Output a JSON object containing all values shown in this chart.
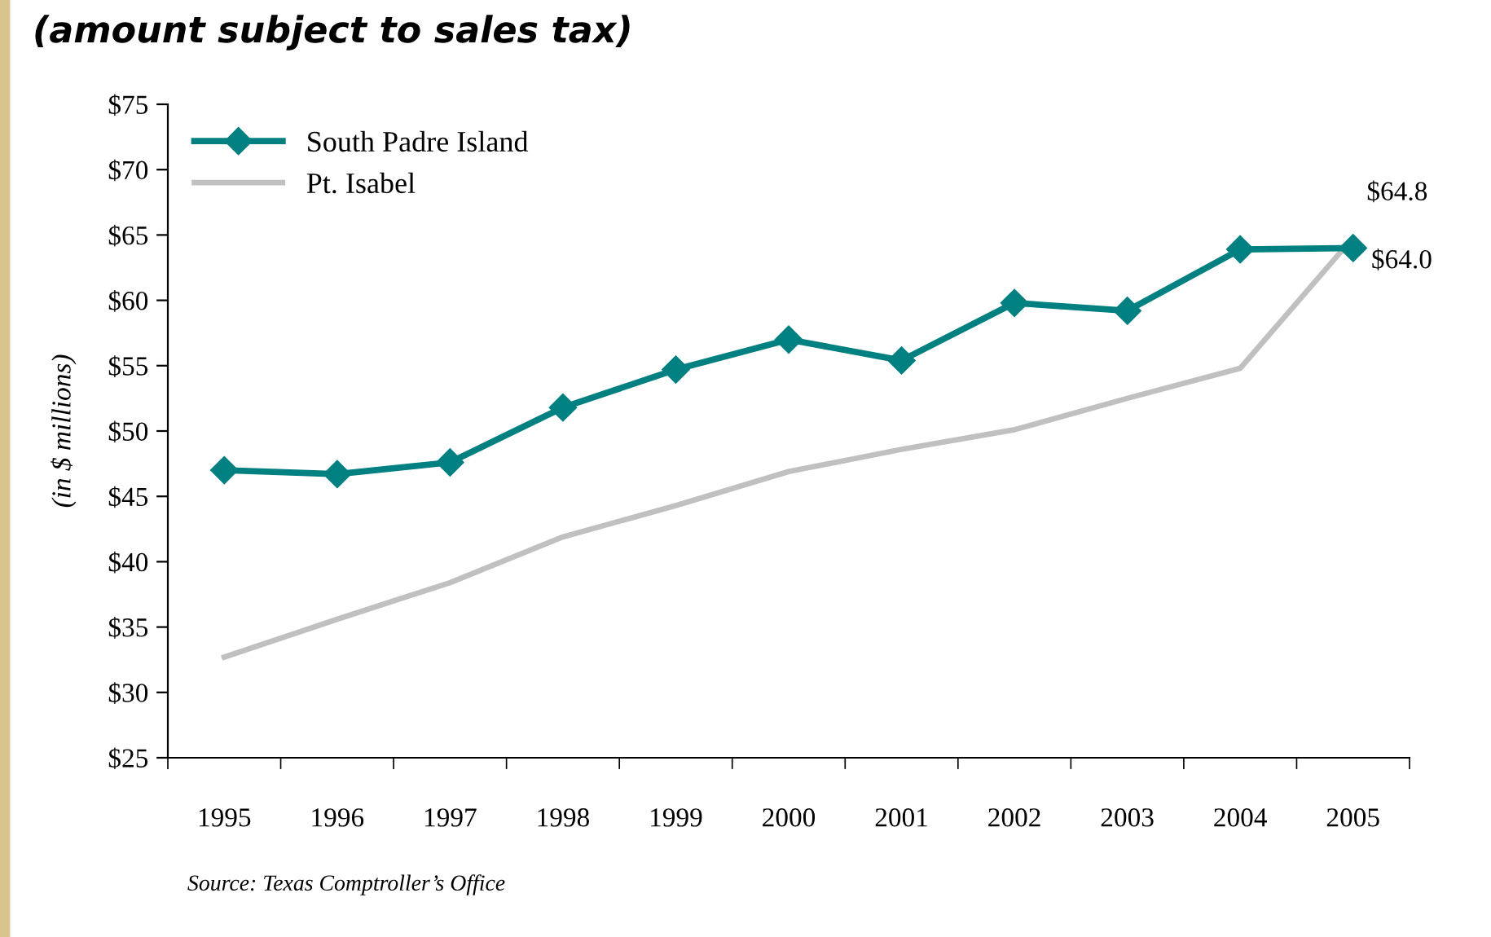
{
  "chart_data": {
    "type": "line",
    "subtitle": "(amount subject to sales tax)",
    "ylabel": "(in $ millions)",
    "categories": [
      "1995",
      "1996",
      "1997",
      "1998",
      "1999",
      "2000",
      "2001",
      "2002",
      "2003",
      "2004",
      "2005"
    ],
    "series": [
      {
        "name": "South Padre Island",
        "color": "#008080",
        "marker": "diamond",
        "values": [
          47.0,
          46.7,
          47.6,
          51.8,
          54.7,
          57.0,
          55.4,
          59.8,
          59.2,
          63.9,
          64.0
        ],
        "value_labels": [
          null,
          null,
          null,
          null,
          null,
          null,
          null,
          null,
          null,
          null,
          "$64.0"
        ]
      },
      {
        "name": "Pt. Isabel",
        "color": "#c0c0c0",
        "marker": "none",
        "values": [
          32.7,
          35.6,
          38.4,
          41.9,
          44.3,
          46.9,
          48.6,
          50.1,
          52.5,
          54.8,
          64.8
        ],
        "value_labels": [
          null,
          null,
          null,
          null,
          null,
          null,
          null,
          null,
          null,
          null,
          "$64.8"
        ]
      }
    ],
    "ylim": [
      25,
      75
    ],
    "yticks": [
      {
        "value": 25,
        "label": "$25"
      },
      {
        "value": 30,
        "label": "$30"
      },
      {
        "value": 35,
        "label": "$35"
      },
      {
        "value": 40,
        "label": "$40"
      },
      {
        "value": 45,
        "label": "$45"
      },
      {
        "value": 50,
        "label": "$50"
      },
      {
        "value": 55,
        "label": "$55"
      },
      {
        "value": 60,
        "label": "$60"
      },
      {
        "value": 65,
        "label": "$65"
      },
      {
        "value": 70,
        "label": "$70"
      },
      {
        "value": 75,
        "label": "$75"
      }
    ],
    "grid": false,
    "legend": "top left",
    "annotations": [
      "Source: Texas Comptroller’s Office"
    ]
  }
}
